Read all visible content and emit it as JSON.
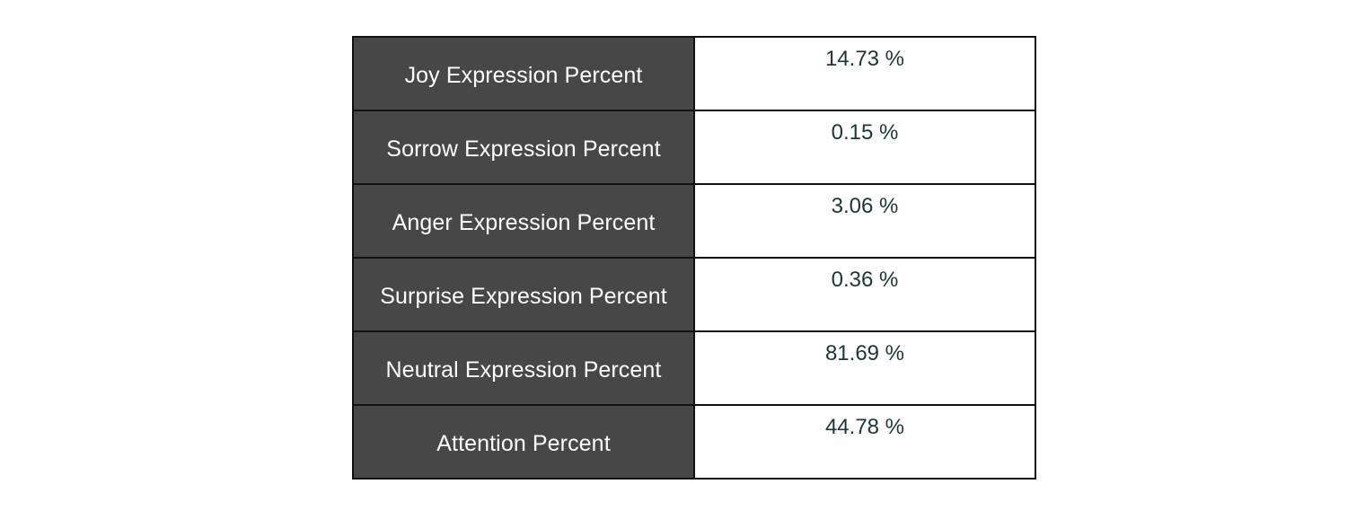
{
  "metrics": [
    {
      "label": "Joy Expression Percent",
      "value": "14.73 %"
    },
    {
      "label": "Sorrow Expression Percent",
      "value": "0.15 %"
    },
    {
      "label": "Anger Expression Percent",
      "value": "3.06 %"
    },
    {
      "label": "Surprise Expression Percent",
      "value": "0.36 %"
    },
    {
      "label": "Neutral Expression Percent",
      "value": "81.69 %"
    },
    {
      "label": "Attention Percent",
      "value": "44.78 %"
    }
  ]
}
